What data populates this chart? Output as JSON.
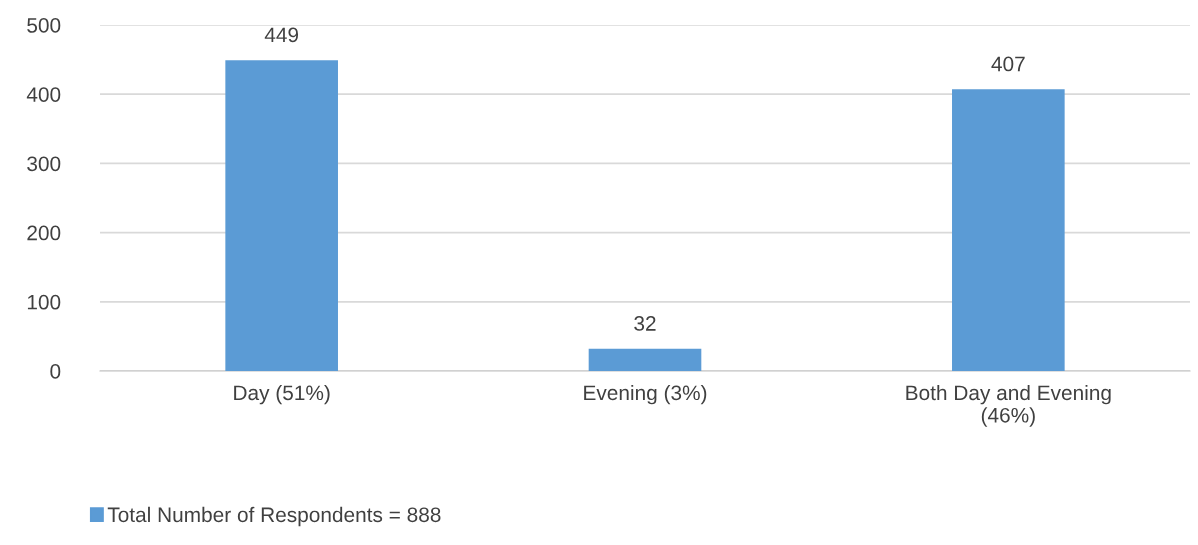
{
  "chart_data": {
    "type": "bar",
    "categories": [
      "Day (51%)",
      "Evening (3%)",
      "Both Day and Evening\n(46%)"
    ],
    "series": [
      {
        "name": "Total Number of Respondents = 888",
        "color": "#5b9bd5",
        "values": [
          449,
          32,
          407
        ]
      }
    ],
    "ylim": [
      0,
      500
    ],
    "yticks": [
      0,
      100,
      200,
      300,
      400,
      500
    ],
    "grid": "y",
    "data_labels": true,
    "legend": "bottom left"
  }
}
